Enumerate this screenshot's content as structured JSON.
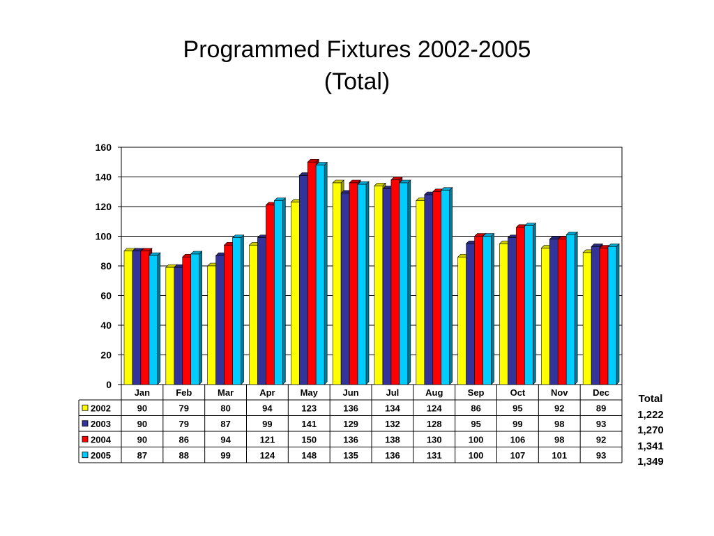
{
  "chart_data": {
    "type": "bar",
    "title": "Programmed Fixtures 2002-2005",
    "subtitle": "(Total)",
    "xlabel": "",
    "ylabel": "",
    "ylim": [
      0,
      160
    ],
    "yticks": [
      0,
      20,
      40,
      60,
      80,
      100,
      120,
      140,
      160
    ],
    "grid": true,
    "legend": "data-table",
    "categories": [
      "Jan",
      "Feb",
      "Mar",
      "Apr",
      "May",
      "Jun",
      "Jul",
      "Aug",
      "Sep",
      "Oct",
      "Nov",
      "Dec"
    ],
    "series": [
      {
        "name": "2002",
        "color": "#ffff00",
        "values": [
          90,
          79,
          80,
          94,
          123,
          136,
          134,
          124,
          86,
          95,
          92,
          89
        ]
      },
      {
        "name": "2003",
        "color": "#333399",
        "values": [
          90,
          79,
          87,
          99,
          141,
          129,
          132,
          128,
          95,
          99,
          98,
          93
        ]
      },
      {
        "name": "2004",
        "color": "#ff0000",
        "values": [
          90,
          86,
          94,
          121,
          150,
          136,
          138,
          130,
          100,
          106,
          98,
          92
        ]
      },
      {
        "name": "2005",
        "color": "#00ccff",
        "values": [
          87,
          88,
          99,
          124,
          148,
          135,
          136,
          131,
          100,
          107,
          101,
          93
        ]
      }
    ],
    "totals_label": "Total",
    "totals": [
      "1,222",
      "1,270",
      "1,341",
      "1,349"
    ]
  }
}
